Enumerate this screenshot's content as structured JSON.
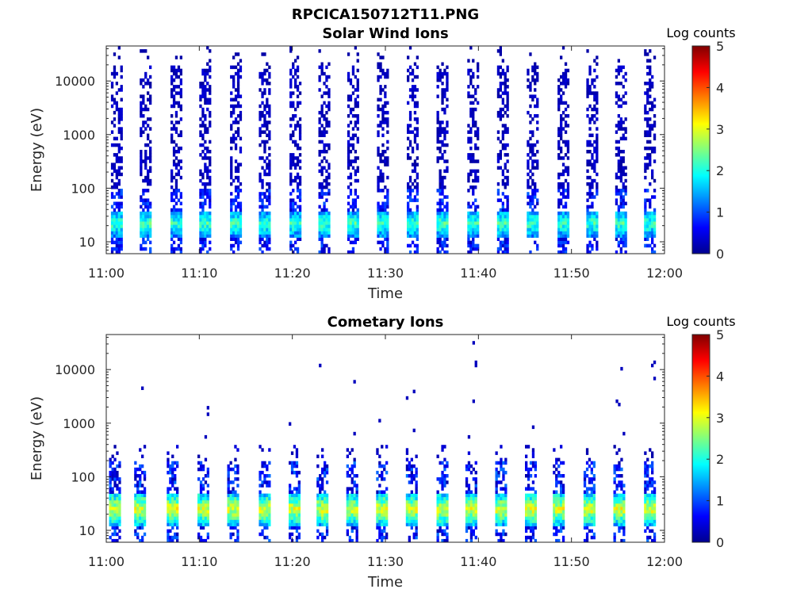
{
  "figure": {
    "title": "RPCICA150712T11.PNG"
  },
  "chart_data": [
    {
      "type": "heatmap",
      "title": "Solar Wind Ions",
      "xlabel": "Time",
      "ylabel": "Energy (eV)",
      "x_ticks": [
        "11:00",
        "11:10",
        "11:20",
        "11:30",
        "11:40",
        "11:50",
        "12:00"
      ],
      "x_range": [
        "11:00",
        "12:00"
      ],
      "y_scale": "log",
      "y_ticks": [
        "10",
        "100",
        "1000",
        "10000"
      ],
      "y_range": [
        6,
        45000
      ],
      "colorbar": {
        "title": "Log counts",
        "ticks": [
          "0",
          "1",
          "2",
          "3",
          "4",
          "5"
        ],
        "range": [
          0,
          5
        ],
        "colormap": "jet"
      },
      "scan_start_minutes": [
        0.5,
        3.6,
        6.9,
        10.0,
        13.3,
        16.4,
        19.7,
        22.8,
        25.9,
        29.1,
        32.3,
        35.5,
        38.8,
        42.0,
        45.2,
        48.5,
        51.6,
        54.7,
        57.8
      ],
      "peak": {
        "energy_eV": 22,
        "log_counts": 2.2
      }
    },
    {
      "type": "heatmap",
      "title": "Cometary Ions",
      "xlabel": "Time",
      "ylabel": "Energy (eV)",
      "x_ticks": [
        "11:00",
        "11:10",
        "11:20",
        "11:30",
        "11:40",
        "11:50",
        "12:00"
      ],
      "x_range": [
        "11:00",
        "12:00"
      ],
      "y_scale": "log",
      "y_ticks": [
        "10",
        "100",
        "1000",
        "10000"
      ],
      "y_range": [
        6,
        45000
      ],
      "colorbar": {
        "title": "Log counts",
        "ticks": [
          "0",
          "1",
          "2",
          "3",
          "4",
          "5"
        ],
        "range": [
          0,
          5
        ],
        "colormap": "jet"
      },
      "scan_start_minutes": [
        0.3,
        3.0,
        6.5,
        9.8,
        13.0,
        16.4,
        19.6,
        22.6,
        25.8,
        29.0,
        32.2,
        35.5,
        38.6,
        41.8,
        45.0,
        48.0,
        51.3,
        54.5,
        57.8
      ],
      "peak": {
        "energy_eV": 25,
        "log_counts": 3.0
      }
    }
  ]
}
